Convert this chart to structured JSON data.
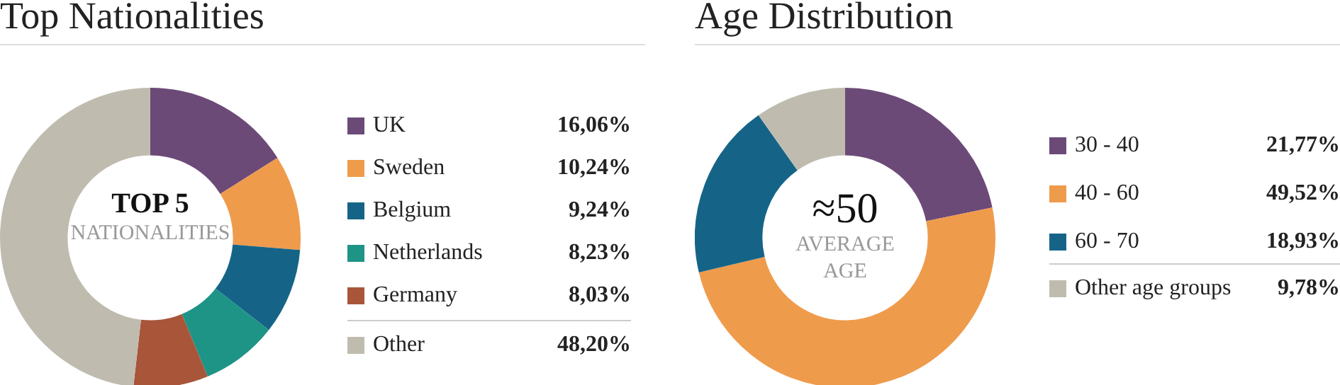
{
  "chart_data": [
    {
      "type": "donut",
      "title": "Top Nationalities",
      "categories": [
        "UK",
        "Sweden",
        "Belgium",
        "Netherlands",
        "Germany",
        "Other"
      ],
      "values": [
        16.06,
        10.24,
        9.24,
        8.23,
        8.03,
        48.2
      ],
      "value_labels": [
        "16,06%",
        "10,24%",
        "9,24%",
        "8,23%",
        "8,03%",
        "48,20%"
      ],
      "colors": [
        "#6c4a78",
        "#ef9b4c",
        "#156488",
        "#1e9486",
        "#a9553a",
        "#bfbcaf"
      ],
      "legend": "right",
      "annotations": [
        "TOP 5",
        "NATIONALITIES"
      ]
    },
    {
      "type": "donut",
      "title": "Age Distribution",
      "categories": [
        "30 - 40",
        "40 - 60",
        "60 - 70",
        "Other age groups"
      ],
      "values": [
        21.77,
        49.52,
        18.93,
        9.78
      ],
      "value_labels": [
        "21,77%",
        "49,52%",
        "18,93%",
        "9,78%"
      ],
      "colors": [
        "#6c4a78",
        "#ef9b4c",
        "#156488",
        "#bfbcaf"
      ],
      "legend": "right",
      "annotations": [
        "≈50",
        "AVERAGE AGE"
      ]
    }
  ]
}
